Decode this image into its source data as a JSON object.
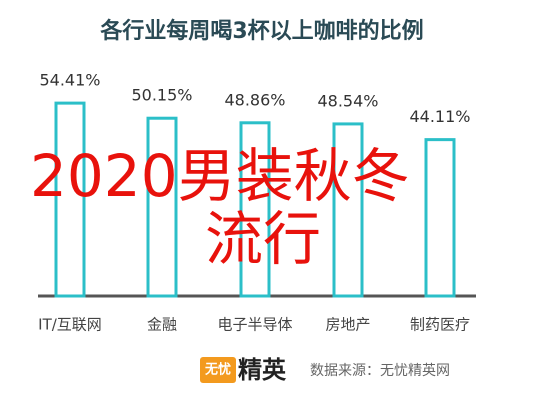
{
  "chart_data": {
    "type": "bar",
    "title": "各行业每周喝3杯以上咖啡的比例",
    "categories": [
      "IT/互联网",
      "金融",
      "电子半导体",
      "房地产",
      "制药医疗"
    ],
    "values": [
      54.41,
      50.15,
      48.86,
      48.54,
      44.11
    ],
    "value_labels": [
      "54.41%",
      "50.15%",
      "48.86%",
      "48.54%",
      "44.11%"
    ],
    "color": "#2bbfc8",
    "annotations": [
      "2020男装秋冬",
      "流行"
    ],
    "source_logo": {
      "badge": "无忧",
      "text": "精英"
    },
    "source": "数据来源：无忧精英网"
  }
}
